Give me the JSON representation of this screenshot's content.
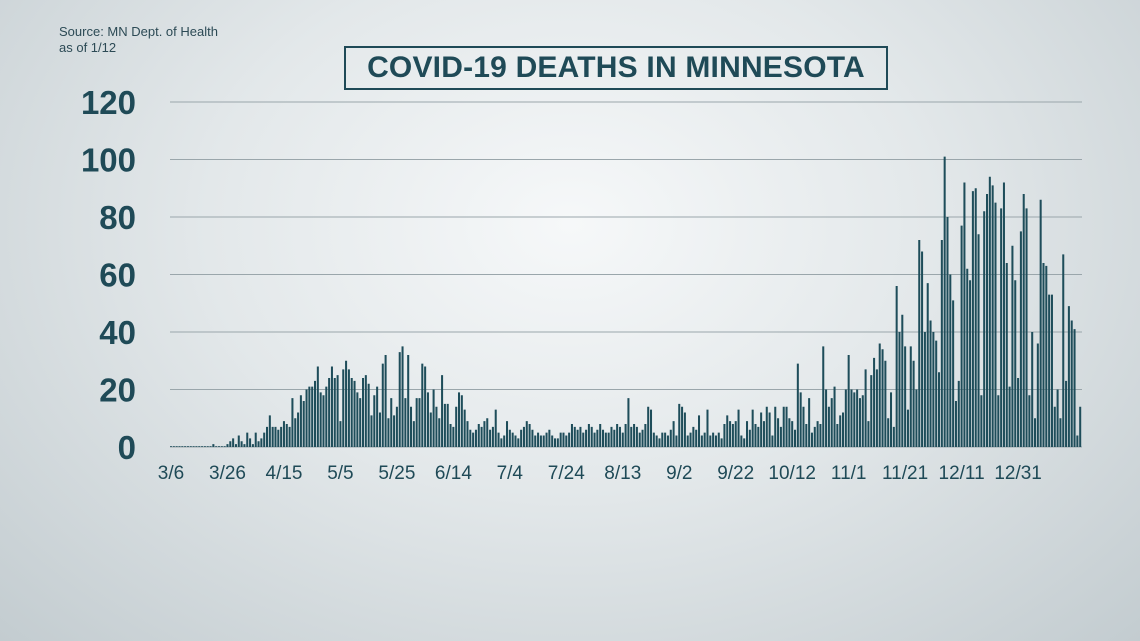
{
  "source": {
    "line1": "Source: MN Dept. of Health",
    "line2": "as of 1/12"
  },
  "chart_data": {
    "type": "bar",
    "title": "COVID-19 DEATHS IN MINNESOTA",
    "xlabel": "",
    "ylabel": "",
    "ylim": [
      0,
      120
    ],
    "yticks": [
      "0",
      "20",
      "40",
      "60",
      "80",
      "100",
      "120"
    ],
    "xtick_labels": [
      "3/6",
      "3/26",
      "4/15",
      "5/5",
      "5/25",
      "6/14",
      "7/4",
      "7/24",
      "8/13",
      "9/2",
      "9/22",
      "10/12",
      "11/1",
      "11/21",
      "12/11",
      "12/31"
    ],
    "grid": true,
    "bar_color": "#1e4d5a",
    "x_start": "3/6",
    "values": [
      0,
      0,
      0,
      0,
      0,
      0,
      0,
      0,
      0,
      0,
      0,
      0,
      0,
      0,
      0,
      1,
      0,
      0,
      0,
      0,
      1,
      2,
      3,
      1,
      4,
      2,
      1,
      5,
      3,
      1,
      5,
      2,
      3,
      5,
      7,
      11,
      7,
      7,
      6,
      7,
      9,
      8,
      7,
      17,
      10,
      12,
      18,
      16,
      20,
      21,
      21,
      23,
      28,
      19,
      18,
      21,
      24,
      28,
      24,
      25,
      9,
      27,
      30,
      27,
      24,
      23,
      19,
      17,
      24,
      25,
      22,
      11,
      18,
      21,
      12,
      29,
      32,
      10,
      17,
      11,
      14,
      33,
      35,
      17,
      32,
      14,
      9,
      17,
      17,
      29,
      28,
      19,
      12,
      20,
      14,
      10,
      25,
      15,
      15,
      8,
      7,
      14,
      19,
      18,
      13,
      9,
      6,
      5,
      6,
      8,
      7,
      9,
      10,
      6,
      7,
      13,
      5,
      3,
      4,
      9,
      6,
      5,
      4,
      3,
      6,
      7,
      9,
      8,
      6,
      4,
      5,
      4,
      4,
      5,
      6,
      4,
      3,
      3,
      5,
      5,
      4,
      5,
      8,
      7,
      6,
      7,
      5,
      6,
      8,
      7,
      5,
      6,
      8,
      6,
      5,
      5,
      7,
      6,
      8,
      7,
      5,
      8,
      17,
      7,
      8,
      7,
      5,
      6,
      8,
      14,
      13,
      5,
      4,
      3,
      5,
      5,
      4,
      6,
      9,
      4,
      15,
      14,
      12,
      4,
      5,
      7,
      6,
      11,
      4,
      5,
      13,
      4,
      5,
      4,
      5,
      3,
      8,
      11,
      9,
      8,
      9,
      13,
      4,
      3,
      9,
      6,
      13,
      8,
      7,
      12,
      9,
      14,
      12,
      4,
      14,
      10,
      7,
      14,
      14,
      10,
      9,
      6,
      29,
      19,
      14,
      8,
      17,
      5,
      7,
      9,
      8,
      35,
      20,
      14,
      17,
      21,
      8,
      11,
      12,
      20,
      32,
      20,
      19,
      20,
      17,
      18,
      27,
      9,
      25,
      31,
      27,
      36,
      34,
      30,
      10,
      19,
      7,
      56,
      40,
      46,
      35,
      13,
      35,
      30,
      20,
      72,
      68,
      40,
      57,
      44,
      40,
      37,
      26,
      72,
      101,
      80,
      60,
      51,
      16,
      23,
      77,
      92,
      62,
      58,
      89,
      90,
      74,
      18,
      82,
      88,
      94,
      91,
      85,
      18,
      83,
      92,
      64,
      21,
      70,
      58,
      24,
      75,
      88,
      83,
      18,
      40,
      10,
      36,
      86,
      64,
      63,
      53,
      53,
      14,
      20,
      10,
      67,
      23,
      49,
      44,
      41,
      4,
      14
    ]
  }
}
